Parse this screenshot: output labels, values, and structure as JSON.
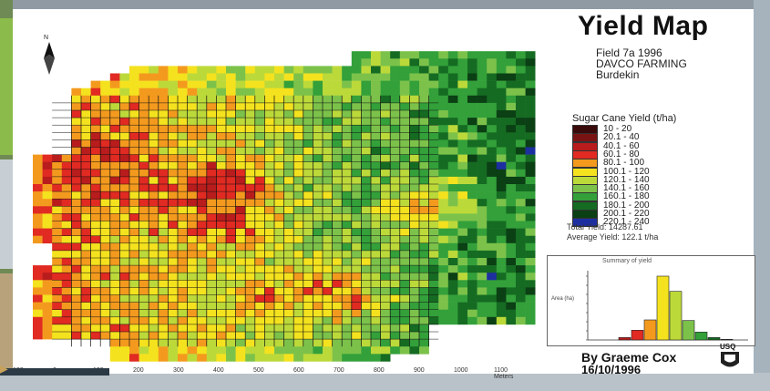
{
  "title": "Yield Map",
  "field_info": [
    "Field 7a 1996",
    "DAVCO FARMING",
    "Burdekin"
  ],
  "legend": {
    "title": "Sugar Cane Yield (t/ha)",
    "classes": [
      {
        "label": "10 - 20",
        "color": "#3a0a0a"
      },
      {
        "label": "20.1 - 40",
        "color": "#7a1414"
      },
      {
        "label": "40.1 - 60",
        "color": "#b81c1c"
      },
      {
        "label": "60.1 - 80",
        "color": "#e02a22"
      },
      {
        "label": "80.1 - 100",
        "color": "#f39a1e"
      },
      {
        "label": "100.1 - 120",
        "color": "#f4e21e"
      },
      {
        "label": "120.1 - 140",
        "color": "#bcd93a"
      },
      {
        "label": "140.1 - 160",
        "color": "#7cc24a"
      },
      {
        "label": "160.1 - 180",
        "color": "#33a03a"
      },
      {
        "label": "180.1 - 200",
        "color": "#156b22"
      },
      {
        "label": "200.1 - 220",
        "color": "#0b3f14"
      },
      {
        "label": "220.1 - 240",
        "color": "#1d2fa0"
      }
    ]
  },
  "totals": {
    "total_yield": "Total Yield: 14287.61",
    "average_yield": "Average Yield: 122.1 t/ha"
  },
  "histogram": {
    "title": "Summary of yield",
    "ylabel": "Area (ha)",
    "values": [
      0,
      0,
      0.4,
      1.6,
      3.3,
      10.5,
      8.0,
      3.2,
      1.3,
      0.4,
      0.1,
      0
    ]
  },
  "author": {
    "line1": "By Graeme Cox",
    "line2": "16/10/1996"
  },
  "logo_text": "USQ",
  "scale_ticks": [
    "100",
    "0",
    "100",
    "200",
    "300",
    "400",
    "500",
    "600",
    "700",
    "800",
    "900",
    "1000",
    "1100 Meters"
  ],
  "north_label": "N"
}
